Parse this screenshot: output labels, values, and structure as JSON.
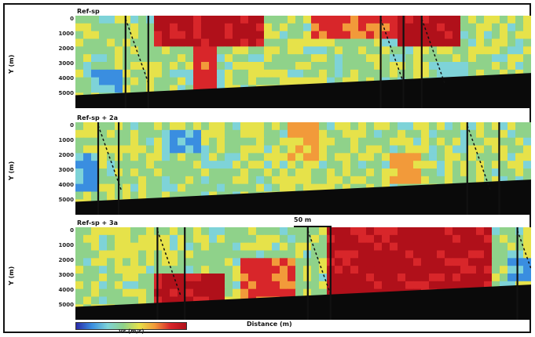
{
  "figure": {
    "panel_titles": [
      "Ref-sp",
      "Ref-sp + 2a",
      "Ref-sp + 3a"
    ],
    "ylabels": [
      "Y (m)",
      "Y (m)",
      "Y (m)"
    ],
    "scalebar_label": "50 m",
    "xaxis_label": "Distance (m)",
    "colorbar_label": "Vs (m/s)"
  },
  "chart_data": {
    "type": "heatmap",
    "colormap": [
      "#2a2aa8",
      "#3a8ee0",
      "#7ed3d8",
      "#8fd28a",
      "#e6e24a",
      "#f29a3a",
      "#d8262a",
      "#b0101a"
    ],
    "panels": [
      {
        "title": "Ref-sp",
        "ytick_labels": [
          "0",
          "1000",
          "2000",
          "3000",
          "4000",
          "5000"
        ],
        "hot_zones": [
          {
            "x": [
              0.18,
              0.42
            ],
            "y": [
              0.0,
              0.35
            ],
            "level": 7
          },
          {
            "x": [
              0.26,
              0.31
            ],
            "y": [
              0.0,
              0.8
            ],
            "level": 6
          },
          {
            "x": [
              0.52,
              0.7
            ],
            "y": [
              0.0,
              0.25
            ],
            "level": 6
          },
          {
            "x": [
              0.7,
              0.85
            ],
            "y": [
              0.0,
              0.3
            ],
            "level": 7
          }
        ],
        "cold_zones": [
          {
            "x": [
              0.03,
              0.1
            ],
            "y": [
              0.55,
              0.85
            ],
            "level": 1
          },
          {
            "x": [
              0.78,
              0.88
            ],
            "y": [
              0.5,
              0.8
            ],
            "level": 2
          }
        ],
        "faults": [
          0.11,
          0.16,
          0.67,
          0.72,
          0.76
        ]
      },
      {
        "title": "Ref-sp + 2a",
        "ytick_labels": [
          "0",
          "1000",
          "2000",
          "3000",
          "4000",
          "5000"
        ],
        "hot_zones": [
          {
            "x": [
              0.47,
              0.53
            ],
            "y": [
              0.0,
              0.4
            ],
            "level": 5
          },
          {
            "x": [
              0.69,
              0.75
            ],
            "y": [
              0.35,
              0.65
            ],
            "level": 5
          },
          {
            "x": [
              0.36,
              0.42
            ],
            "y": [
              0.1,
              0.3
            ],
            "level": 4
          }
        ],
        "cold_zones": [
          {
            "x": [
              0.2,
              0.27
            ],
            "y": [
              0.05,
              0.35
            ],
            "level": 1
          },
          {
            "x": [
              0.0,
              0.06
            ],
            "y": [
              0.3,
              0.75
            ],
            "level": 1
          }
        ],
        "faults": [
          0.05,
          0.095,
          0.86,
          0.93
        ]
      },
      {
        "title": "Ref-sp + 3a",
        "ytick_labels": [
          "0",
          "1000",
          "2000",
          "3000",
          "4000",
          "5000"
        ],
        "hot_zones": [
          {
            "x": [
              0.18,
              0.32
            ],
            "y": [
              0.5,
              0.85
            ],
            "level": 7
          },
          {
            "x": [
              0.55,
              0.92
            ],
            "y": [
              0.0,
              0.8
            ],
            "level": 7
          },
          {
            "x": [
              0.37,
              0.48
            ],
            "y": [
              0.3,
              0.8
            ],
            "level": 6
          }
        ],
        "cold_zones": [
          {
            "x": [
              0.95,
              1.0
            ],
            "y": [
              0.3,
              0.6
            ],
            "level": 1
          }
        ],
        "faults": [
          0.18,
          0.24,
          0.51,
          0.56,
          0.97
        ]
      }
    ]
  }
}
